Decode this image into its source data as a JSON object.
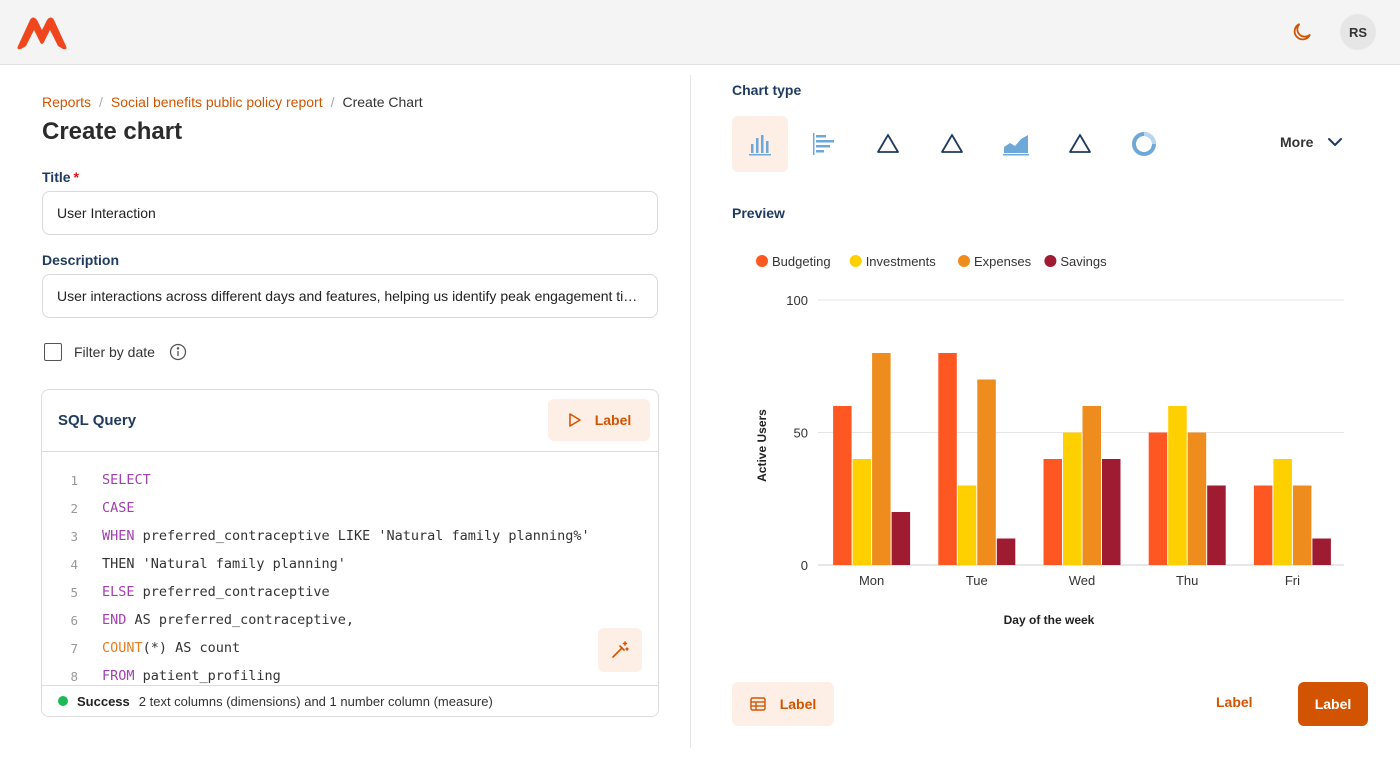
{
  "header": {
    "logo_icon": "app-logo",
    "theme_icon": "moon-icon",
    "avatar_initials": "RS"
  },
  "breadcrumb": {
    "items": [
      "Reports",
      "Social benefits public policy report"
    ],
    "current": "Create Chart",
    "separator": "/"
  },
  "page_title": "Create chart",
  "form": {
    "title_label": "Title",
    "required_mark": "*",
    "title_value": "User Interaction",
    "description_label": "Description",
    "description_value": "User interactions across different days and features, helping us identify peak engagement times",
    "filter_label": "Filter by date",
    "filter_checked": false
  },
  "sql": {
    "title": "SQL Query",
    "run_label": "Label",
    "lines": [
      {
        "n": "1",
        "parts": [
          {
            "t": "SELECT",
            "c": "kw"
          }
        ]
      },
      {
        "n": "2",
        "parts": [
          {
            "t": "CASE",
            "c": "kw"
          }
        ]
      },
      {
        "n": "3",
        "parts": [
          {
            "t": "WHEN",
            "c": "kw"
          },
          {
            "t": " preferred_contraceptive LIKE 'Natural family planning%'",
            "c": "plain"
          }
        ]
      },
      {
        "n": "4",
        "parts": [
          {
            "t": "THEN 'Natural family planning'",
            "c": "plain"
          }
        ]
      },
      {
        "n": "5",
        "parts": [
          {
            "t": "ELSE",
            "c": "kw"
          },
          {
            "t": " preferred_contraceptive",
            "c": "plain"
          }
        ]
      },
      {
        "n": "6",
        "parts": [
          {
            "t": "END",
            "c": "kw"
          },
          {
            "t": " AS preferred_contraceptive,",
            "c": "plain"
          }
        ]
      },
      {
        "n": "7",
        "parts": [
          {
            "t": "COUNT",
            "c": "fn"
          },
          {
            "t": "(*) AS count",
            "c": "plain"
          }
        ]
      },
      {
        "n": "8",
        "parts": [
          {
            "t": "FROM",
            "c": "kw"
          },
          {
            "t": " patient_profiling",
            "c": "plain"
          }
        ]
      }
    ],
    "status_label": "Success",
    "status_text": "2 text columns (dimensions) and 1 number column (measure)"
  },
  "chart_type": {
    "label": "Chart type",
    "types": [
      "bar-chart-icon",
      "horizontal-bar-icon",
      "triangle-icon",
      "triangle-icon",
      "area-chart-icon",
      "triangle-icon",
      "donut-chart-icon"
    ],
    "selected": 0,
    "more_label": "More"
  },
  "preview_label": "Preview",
  "colors": {
    "accent": "#d35400",
    "budgeting": "#ff5722",
    "investments": "#ffd000",
    "expenses": "#ef8c1e",
    "savings": "#9e1b32"
  },
  "chart_data": {
    "type": "bar",
    "categories": [
      "Mon",
      "Tue",
      "Wed",
      "Thu",
      "Fri"
    ],
    "series": [
      {
        "name": "Budgeting",
        "color": "#ff5722",
        "values": [
          60,
          80,
          40,
          50,
          30
        ]
      },
      {
        "name": "Investments",
        "color": "#ffd000",
        "values": [
          40,
          30,
          50,
          60,
          40
        ]
      },
      {
        "name": "Expenses",
        "color": "#ef8c1e",
        "values": [
          80,
          70,
          60,
          50,
          30
        ]
      },
      {
        "name": "Savings",
        "color": "#9e1b32",
        "values": [
          20,
          10,
          40,
          30,
          10
        ]
      }
    ],
    "xlabel": "Day of the week",
    "ylabel": "Active Users",
    "ylim": [
      0,
      100
    ],
    "yticks": [
      0,
      50,
      100
    ],
    "grid": true,
    "legend": "top-left"
  },
  "footer": {
    "table_btn_label": "Label",
    "text_btn_label": "Label",
    "primary_btn_label": "Label"
  }
}
